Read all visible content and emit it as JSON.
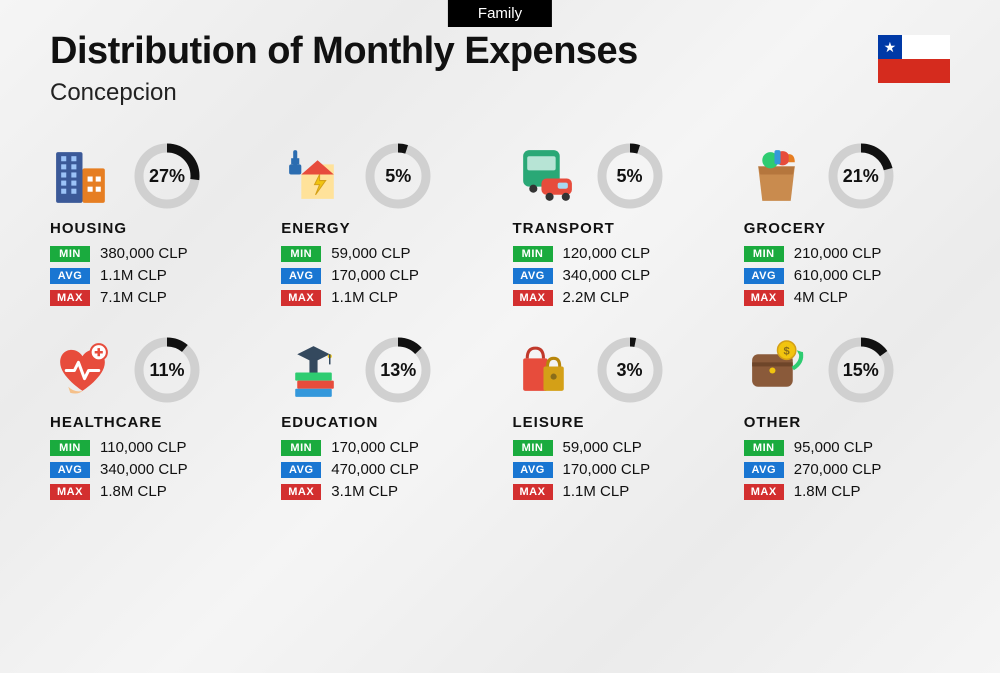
{
  "tag": "Family",
  "title": "Distribution of Monthly Expenses",
  "subtitle": "Concepcion",
  "currency": "CLP",
  "labels": {
    "min": "MIN",
    "avg": "AVG",
    "max": "MAX"
  },
  "donut": {
    "radius": 28,
    "stroke": 9,
    "track_color": "#d0d0d0",
    "arc_color": "#111111",
    "size": 68
  },
  "tag_colors": {
    "min": "#1aab3e",
    "avg": "#1976d2",
    "max": "#d32f2f"
  },
  "flag": {
    "blue": "#0039a6",
    "white": "#ffffff",
    "red": "#d52b1e"
  },
  "categories": [
    {
      "key": "housing",
      "name": "HOUSING",
      "pct": 27,
      "min": "380,000 CLP",
      "avg": "1.1M CLP",
      "max": "7.1M CLP",
      "icon": "buildings"
    },
    {
      "key": "energy",
      "name": "ENERGY",
      "pct": 5,
      "min": "59,000 CLP",
      "avg": "170,000 CLP",
      "max": "1.1M CLP",
      "icon": "energy"
    },
    {
      "key": "transport",
      "name": "TRANSPORT",
      "pct": 5,
      "min": "120,000 CLP",
      "avg": "340,000 CLP",
      "max": "2.2M CLP",
      "icon": "transport"
    },
    {
      "key": "grocery",
      "name": "GROCERY",
      "pct": 21,
      "min": "210,000 CLP",
      "avg": "610,000 CLP",
      "max": "4M CLP",
      "icon": "grocery"
    },
    {
      "key": "healthcare",
      "name": "HEALTHCARE",
      "pct": 11,
      "min": "110,000 CLP",
      "avg": "340,000 CLP",
      "max": "1.8M CLP",
      "icon": "health"
    },
    {
      "key": "education",
      "name": "EDUCATION",
      "pct": 13,
      "min": "170,000 CLP",
      "avg": "470,000 CLP",
      "max": "3.1M CLP",
      "icon": "education"
    },
    {
      "key": "leisure",
      "name": "LEISURE",
      "pct": 3,
      "min": "59,000 CLP",
      "avg": "170,000 CLP",
      "max": "1.1M CLP",
      "icon": "leisure"
    },
    {
      "key": "other",
      "name": "OTHER",
      "pct": 15,
      "min": "95,000 CLP",
      "avg": "270,000 CLP",
      "max": "1.8M CLP",
      "icon": "other"
    }
  ]
}
